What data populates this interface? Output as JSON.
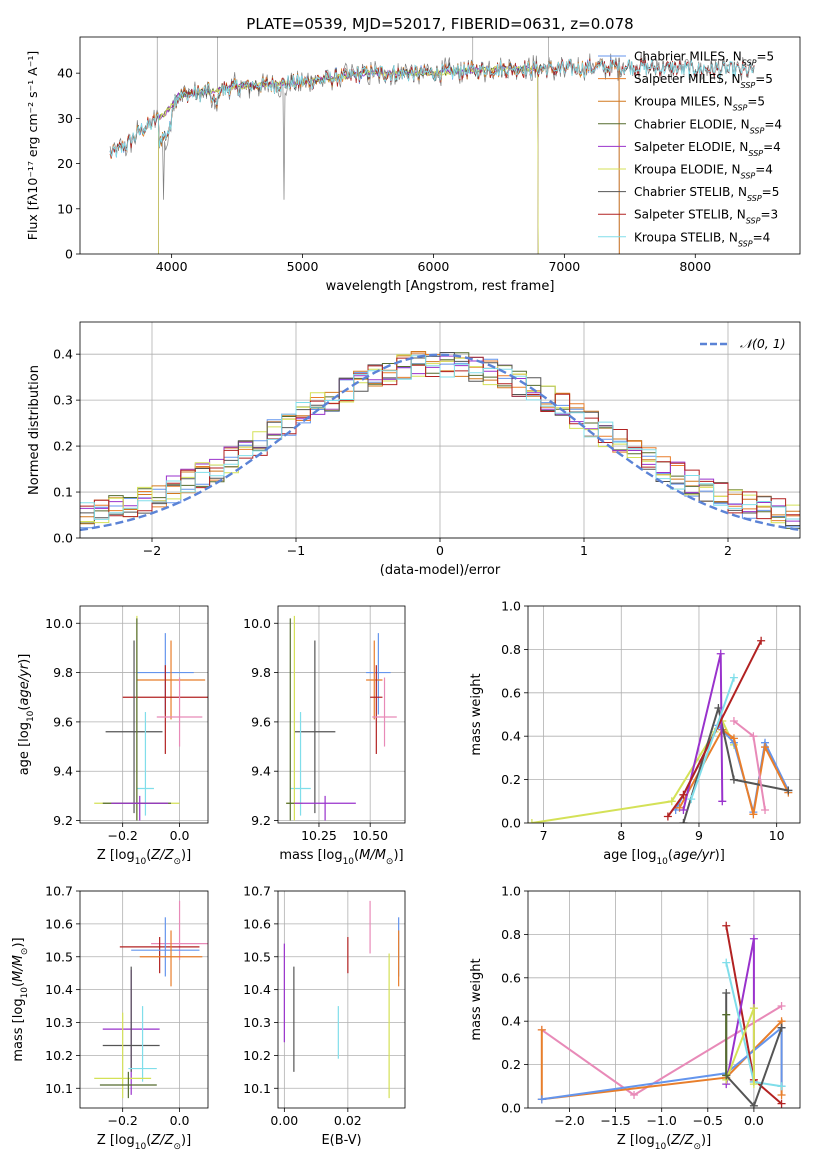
{
  "colors": {
    "cm": "#6495ed",
    "sm": "#e87e2b",
    "km": "#d2781e",
    "ce": "#556b2f",
    "se": "#9932cc",
    "ke": "#d4e157",
    "cs": "#555555",
    "ss": "#b22222",
    "ks": "#80deea",
    "pink": "#e88ab8"
  },
  "figure_title": "PLATE=0539, MJD=52017, FIBERID=0631, z=0.078",
  "chart_data": [
    {
      "id": "spectrum",
      "type": "line",
      "xlabel": "wavelength [Angstrom, rest frame]",
      "ylabel": "Flux [fλ10⁻¹⁷ erg cm⁻² s⁻¹ A⁻¹]",
      "xlim": [
        3300,
        8800
      ],
      "ylim": [
        0,
        48
      ],
      "xticks": [
        4000,
        5000,
        6000,
        7000,
        8000
      ],
      "yticks": [
        0,
        10,
        20,
        30,
        40
      ],
      "grid": false,
      "legend_position": "top-right",
      "series": [
        {
          "name": "Chabrier MILES, N_SSP=5",
          "color": "cm",
          "x_range": [
            3530,
            7420
          ]
        },
        {
          "name": "Salpeter MILES, N_SSP=5",
          "color": "sm",
          "x_range": [
            3530,
            7420
          ]
        },
        {
          "name": "Kroupa MILES, N_SSP=5",
          "color": "km",
          "x_range": [
            3530,
            7420
          ]
        },
        {
          "name": "Chabrier ELODIE, N_SSP=4",
          "color": "ce",
          "x_range": [
            3900,
            6800
          ]
        },
        {
          "name": "Salpeter ELODIE, N_SSP=4",
          "color": "se",
          "x_range": [
            3900,
            6800
          ]
        },
        {
          "name": "Kroupa ELODIE, N_SSP=4",
          "color": "ke",
          "x_range": [
            3900,
            6800
          ]
        },
        {
          "name": "Chabrier STELIB, N_SSP=5",
          "color": "cs",
          "x_range": [
            3530,
            8450
          ]
        },
        {
          "name": "Salpeter STELIB, N_SSP=3",
          "color": "ss",
          "x_range": [
            3530,
            8450
          ]
        },
        {
          "name": "Kroupa STELIB, N_SSP=4",
          "color": "ks",
          "x_range": [
            3530,
            8450
          ]
        }
      ],
      "continuum": [
        [
          3530,
          22
        ],
        [
          3650,
          24
        ],
        [
          3750,
          27
        ],
        [
          3850,
          29
        ],
        [
          3950,
          31
        ],
        [
          4050,
          35
        ],
        [
          4300,
          36
        ],
        [
          4500,
          37
        ],
        [
          5000,
          38
        ],
        [
          5500,
          40
        ],
        [
          6000,
          40
        ],
        [
          6500,
          41
        ],
        [
          7000,
          41
        ],
        [
          7500,
          41.5
        ],
        [
          8000,
          41
        ],
        [
          8450,
          40.5
        ]
      ]
    },
    {
      "id": "residuals",
      "type": "line",
      "xlabel": "(data-model)/error",
      "ylabel": "Normed distribution",
      "xlim": [
        -2.5,
        2.5
      ],
      "ylim": [
        0,
        0.47
      ],
      "xticks": [
        -2,
        -1,
        0,
        1,
        2
      ],
      "yticks": [
        0,
        0.1,
        0.2,
        0.3,
        0.4
      ],
      "grid": true,
      "legend_position": "top-right",
      "reference_curve": {
        "name": "𝒩(0, 1)",
        "color": "#5b83d6"
      },
      "bin_width": 0.1
    },
    {
      "id": "age_vs_z",
      "type": "scatter",
      "xlabel": "Z [log10(Z/Z⊙)]",
      "ylabel": "age  [log10(age/yr)]",
      "xlim": [
        -0.35,
        0.1
      ],
      "ylim": [
        9.19,
        10.07
      ],
      "xticks": [
        -0.2,
        0.0
      ],
      "yticks": [
        9.2,
        9.4,
        9.6,
        9.8,
        10.0
      ],
      "grid": true,
      "points": [
        {
          "c": "cm",
          "x": -0.05,
          "xe": 0.1,
          "y": 9.8,
          "ylo": 9.63,
          "yhi": 9.96
        },
        {
          "c": "sm",
          "x": -0.03,
          "xe": 0.12,
          "y": 9.77,
          "ylo": 9.61,
          "yhi": 9.93
        },
        {
          "c": "ss",
          "x": -0.05,
          "xe": 0.15,
          "y": 9.7,
          "ylo": 9.47,
          "yhi": 9.83
        },
        {
          "c": "pink",
          "x": 0.0,
          "xe": 0.08,
          "y": 9.62,
          "ylo": 9.5,
          "yhi": 9.78
        },
        {
          "c": "cs",
          "x": -0.16,
          "xe": 0.1,
          "y": 9.56,
          "ylo": 9.23,
          "yhi": 9.93
        },
        {
          "c": "ks",
          "x": -0.12,
          "xe": 0.03,
          "y": 9.33,
          "ylo": 9.22,
          "yhi": 9.64
        },
        {
          "c": "ke",
          "x": -0.15,
          "xe": 0.15,
          "y": 9.27,
          "ylo": 9.2,
          "yhi": 10.03
        },
        {
          "c": "ce",
          "x": -0.15,
          "xe": 0.12,
          "y": 9.27,
          "ylo": 9.2,
          "yhi": 10.02
        },
        {
          "c": "se",
          "x": -0.14,
          "xe": 0.1,
          "y": 9.27,
          "ylo": 9.2,
          "yhi": 9.3
        }
      ]
    },
    {
      "id": "age_vs_mass",
      "type": "scatter",
      "xlabel": "mass [log10(M/M⊙)]",
      "ylabel": "",
      "xlim": [
        10.05,
        10.67
      ],
      "ylim": [
        9.19,
        10.07
      ],
      "xticks": [
        10.25,
        10.5
      ],
      "yticks": [
        9.2,
        9.4,
        9.6,
        9.8,
        10.0
      ],
      "grid": true,
      "points": [
        {
          "c": "cm",
          "x": 10.54,
          "xe": 0.06,
          "y": 9.8,
          "ylo": 9.63,
          "yhi": 9.96
        },
        {
          "c": "sm",
          "x": 10.52,
          "xe": 0.04,
          "y": 9.77,
          "ylo": 9.61,
          "yhi": 9.93
        },
        {
          "c": "ss",
          "x": 10.53,
          "xe": 0.03,
          "y": 9.7,
          "ylo": 9.47,
          "yhi": 9.83
        },
        {
          "c": "pink",
          "x": 10.57,
          "xe": 0.06,
          "y": 9.62,
          "ylo": 9.5,
          "yhi": 9.78
        },
        {
          "c": "cs",
          "x": 10.23,
          "xe": 0.1,
          "y": 9.56,
          "ylo": 9.23,
          "yhi": 9.93
        },
        {
          "c": "ks",
          "x": 10.16,
          "xe": 0.05,
          "y": 9.33,
          "ylo": 9.22,
          "yhi": 9.64
        },
        {
          "c": "ke",
          "x": 10.13,
          "xe": 0.04,
          "y": 9.27,
          "ylo": 9.2,
          "yhi": 10.03
        },
        {
          "c": "ce",
          "x": 10.11,
          "xe": 0.02,
          "y": 9.27,
          "ylo": 9.2,
          "yhi": 10.02
        },
        {
          "c": "se",
          "x": 10.28,
          "xe": 0.15,
          "y": 9.27,
          "ylo": 9.2,
          "yhi": 9.3
        }
      ]
    },
    {
      "id": "weight_vs_age",
      "type": "line",
      "xlabel": "age  [log10(age/yr)]",
      "ylabel": "mass weight",
      "xlim": [
        6.8,
        10.3
      ],
      "ylim": [
        0,
        1
      ],
      "xticks": [
        7,
        8,
        9,
        10
      ],
      "yticks": [
        0,
        0.2,
        0.4,
        0.6,
        0.8,
        1.0
      ],
      "grid": true,
      "series": [
        {
          "c": "ke",
          "pts": [
            [
              6.85,
              0.0
            ],
            [
              8.65,
              0.1
            ],
            [
              9.2,
              0.42
            ],
            [
              9.3,
              0.47
            ],
            [
              9.45,
              0.36
            ]
          ]
        },
        {
          "c": "cm",
          "pts": [
            [
              8.7,
              0.06
            ],
            [
              9.25,
              0.45
            ],
            [
              9.45,
              0.37
            ],
            [
              9.7,
              0.05
            ],
            [
              9.85,
              0.37
            ],
            [
              10.15,
              0.15
            ]
          ]
        },
        {
          "c": "sm",
          "pts": [
            [
              8.75,
              0.07
            ],
            [
              9.3,
              0.43
            ],
            [
              9.45,
              0.39
            ],
            [
              9.7,
              0.04
            ],
            [
              9.85,
              0.35
            ],
            [
              10.15,
              0.14
            ]
          ]
        },
        {
          "c": "cs",
          "pts": [
            [
              8.8,
              0.0
            ],
            [
              9.25,
              0.53
            ],
            [
              9.45,
              0.2
            ],
            [
              10.15,
              0.15
            ]
          ]
        },
        {
          "c": "se",
          "pts": [
            [
              8.8,
              0.06
            ],
            [
              9.28,
              0.78
            ],
            [
              9.3,
              0.1
            ]
          ]
        },
        {
          "c": "ss",
          "pts": [
            [
              8.6,
              0.03
            ],
            [
              8.8,
              0.13
            ],
            [
              9.8,
              0.84
            ]
          ]
        },
        {
          "c": "ks",
          "pts": [
            [
              8.9,
              0.11
            ],
            [
              9.45,
              0.67
            ]
          ]
        },
        {
          "c": "pink",
          "pts": [
            [
              9.45,
              0.47
            ],
            [
              9.7,
              0.4
            ],
            [
              9.85,
              0.06
            ]
          ]
        }
      ]
    },
    {
      "id": "mass_vs_z",
      "type": "scatter",
      "xlabel": "Z [log10(Z/Z⊙)]",
      "ylabel": "mass [log10(M/M⊙)]",
      "xlim": [
        -0.35,
        0.1
      ],
      "ylim": [
        10.04,
        10.7
      ],
      "xticks": [
        -0.2,
        0.0
      ],
      "yticks": [
        10.1,
        10.2,
        10.3,
        10.4,
        10.5,
        10.6,
        10.7
      ],
      "grid": true,
      "points": [
        {
          "c": "pink",
          "x": 0.0,
          "xe": 0.1,
          "y": 10.54,
          "ylo": 10.49,
          "yhi": 10.67
        },
        {
          "c": "ss",
          "x": -0.07,
          "xe": 0.14,
          "y": 10.53,
          "ylo": 10.45,
          "yhi": 10.56
        },
        {
          "c": "cm",
          "x": -0.05,
          "xe": 0.12,
          "y": 10.52,
          "ylo": 10.44,
          "yhi": 10.62
        },
        {
          "c": "sm",
          "x": -0.03,
          "xe": 0.11,
          "y": 10.5,
          "ylo": 10.41,
          "yhi": 10.58
        },
        {
          "c": "se",
          "x": -0.17,
          "xe": 0.1,
          "y": 10.28,
          "ylo": 10.08,
          "yhi": 10.46
        },
        {
          "c": "cs",
          "x": -0.17,
          "xe": 0.1,
          "y": 10.23,
          "ylo": 10.15,
          "yhi": 10.47
        },
        {
          "c": "ks",
          "x": -0.13,
          "xe": 0.05,
          "y": 10.16,
          "ylo": 10.12,
          "yhi": 10.35
        },
        {
          "c": "ke",
          "x": -0.2,
          "xe": 0.1,
          "y": 10.13,
          "ylo": 10.07,
          "yhi": 10.33
        },
        {
          "c": "ce",
          "x": -0.18,
          "xe": 0.1,
          "y": 10.11,
          "ylo": 10.07,
          "yhi": 10.15
        }
      ]
    },
    {
      "id": "mass_vs_ebv",
      "type": "scatter",
      "xlabel": "E(B-V)",
      "ylabel": "",
      "xlim": [
        -0.002,
        0.038
      ],
      "ylim": [
        10.04,
        10.7
      ],
      "xticks": [
        0.0,
        0.02
      ],
      "yticks": [
        10.1,
        10.2,
        10.3,
        10.4,
        10.5,
        10.6,
        10.7
      ],
      "grid": true,
      "points": [
        {
          "c": "se",
          "x": 0.0,
          "ylo": 10.24,
          "yhi": 10.54
        },
        {
          "c": "cs",
          "x": 0.003,
          "ylo": 10.15,
          "yhi": 10.47
        },
        {
          "c": "ks",
          "x": 0.017,
          "ylo": 10.19,
          "yhi": 10.35
        },
        {
          "c": "ss",
          "x": 0.02,
          "ylo": 10.45,
          "yhi": 10.56
        },
        {
          "c": "pink",
          "x": 0.027,
          "ylo": 10.51,
          "yhi": 10.67
        },
        {
          "c": "ke",
          "x": 0.033,
          "ylo": 10.07,
          "yhi": 10.51
        },
        {
          "c": "cm",
          "x": 0.036,
          "ylo": 10.44,
          "yhi": 10.62
        },
        {
          "c": "sm",
          "x": 0.036,
          "ylo": 10.41,
          "yhi": 10.58
        }
      ]
    },
    {
      "id": "weight_vs_z",
      "type": "line",
      "xlabel": "Z [log10(Z/Z⊙)]",
      "ylabel": "mass weight",
      "xlim": [
        -2.45,
        0.5
      ],
      "ylim": [
        0,
        1
      ],
      "xticks": [
        -2.0,
        -1.5,
        -1.0,
        -0.5,
        0.0
      ],
      "yticks": [
        0,
        0.2,
        0.4,
        0.6,
        0.8,
        1.0
      ],
      "grid": true,
      "series": [
        {
          "c": "pink",
          "pts": [
            [
              -2.3,
              0.36
            ],
            [
              -1.3,
              0.06
            ],
            [
              0.3,
              0.47
            ]
          ]
        },
        {
          "c": "sm",
          "pts": [
            [
              -2.3,
              0.36
            ],
            [
              -2.3,
              0.04
            ],
            [
              -0.3,
              0.14
            ],
            [
              0.3,
              0.4
            ],
            [
              0.3,
              0.06
            ]
          ]
        },
        {
          "c": "cm",
          "pts": [
            [
              -2.3,
              0.04
            ],
            [
              -0.3,
              0.16
            ],
            [
              0.3,
              0.37
            ],
            [
              0.3,
              0.1
            ]
          ]
        },
        {
          "c": "ss",
          "pts": [
            [
              -0.3,
              0.84
            ],
            [
              0.0,
              0.13
            ],
            [
              0.3,
              0.02
            ]
          ]
        },
        {
          "c": "se",
          "pts": [
            [
              -0.3,
              0.11
            ],
            [
              0.0,
              0.78
            ],
            [
              0.0,
              0.12
            ]
          ]
        },
        {
          "c": "ks",
          "pts": [
            [
              -0.3,
              0.67
            ],
            [
              0.0,
              0.12
            ],
            [
              0.3,
              0.1
            ]
          ]
        },
        {
          "c": "ke",
          "pts": [
            [
              -0.3,
              0.13
            ],
            [
              0.0,
              0.46
            ],
            [
              0.0,
              0.11
            ]
          ]
        },
        {
          "c": "cs",
          "pts": [
            [
              -0.3,
              0.53
            ],
            [
              -0.3,
              0.15
            ],
            [
              0.0,
              0.01
            ],
            [
              0.3,
              0.37
            ]
          ]
        },
        {
          "c": "ce",
          "pts": [
            [
              -0.3,
              0.43
            ],
            [
              -0.3,
              0.15
            ]
          ]
        }
      ]
    }
  ]
}
